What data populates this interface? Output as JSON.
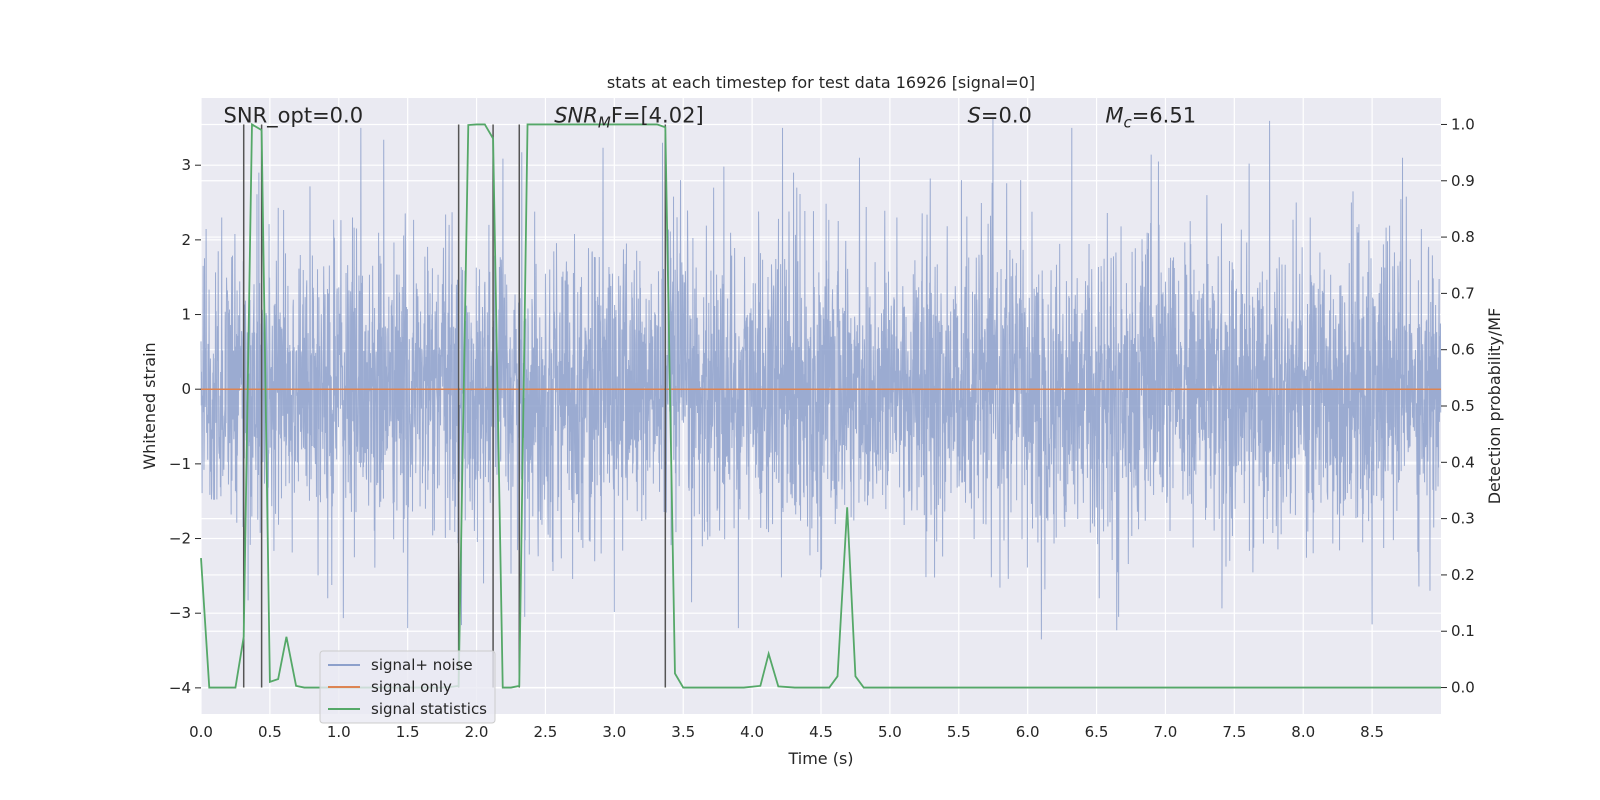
{
  "chart_data": {
    "type": "line",
    "title": "stats at each timestep for test data 16926 [signal=0]",
    "xlabel": "Time (s)",
    "ylabel": "Whitened strain",
    "y2label": "Detection probability/MF",
    "xlim": [
      0,
      9.0
    ],
    "ylim": [
      -4.35,
      3.9
    ],
    "y2lim": [
      -0.047,
      1.047
    ],
    "grid": true,
    "legend_position": "lower-left",
    "x_ticks": [
      0.0,
      0.5,
      1.0,
      1.5,
      2.0,
      2.5,
      3.0,
      3.5,
      4.0,
      4.5,
      5.0,
      5.5,
      6.0,
      6.5,
      7.0,
      7.5,
      8.0,
      8.5
    ],
    "x_tick_labels": [
      "0.0",
      "0.5",
      "1.0",
      "1.5",
      "2.0",
      "2.5",
      "3.0",
      "3.5",
      "4.0",
      "4.5",
      "5.0",
      "5.5",
      "6.0",
      "6.5",
      "7.0",
      "7.5",
      "8.0",
      "8.5"
    ],
    "y_ticks": [
      3,
      2,
      1,
      0,
      -1,
      -2,
      -3,
      -4
    ],
    "y_tick_labels": [
      "3",
      "2",
      "1",
      "0",
      "−1",
      "−2",
      "−3",
      "−4"
    ],
    "y2_ticks": [
      1.0,
      0.9,
      0.8,
      0.7,
      0.6,
      0.5,
      0.4,
      0.3,
      0.2,
      0.1,
      0.0
    ],
    "y2_tick_labels": [
      "1.0",
      "0.9",
      "0.8",
      "0.7",
      "0.6",
      "0.5",
      "0.4",
      "0.3",
      "0.2",
      "0.1",
      "0.0"
    ],
    "annotations": [
      {
        "x": 0.2,
        "y": 1.0,
        "text": "SNR_opt=0.0",
        "math": false
      },
      {
        "x": 2.6,
        "y": 1.0,
        "base": "SNR",
        "sub": "M",
        "rest": "F=[4.02]",
        "math": true
      },
      {
        "x": 5.6,
        "y": 1.0,
        "base": "S",
        "sub": "",
        "rest": "=0.0",
        "math": true
      },
      {
        "x": 6.6,
        "y": 1.0,
        "base": "M",
        "sub": "c",
        "rest": "=6.51",
        "math": true
      }
    ],
    "legend": [
      {
        "label": "signal+ noise",
        "color": "#8da0cb"
      },
      {
        "label": "signal only",
        "color": "#dd8452"
      },
      {
        "label": "signal statistics",
        "color": "#55a868"
      }
    ],
    "series": [
      {
        "name": "signal+ noise",
        "color": "#8da0cb",
        "axis": "left",
        "kind": "noise",
        "sample_rate": 512,
        "std": 0.95,
        "spikes": [
          [
            0.15,
            2.3
          ],
          [
            0.42,
            2.9
          ],
          [
            0.6,
            2.4
          ],
          [
            0.92,
            -2.8
          ],
          [
            1.1,
            2.3
          ],
          [
            1.16,
            3.5
          ],
          [
            1.5,
            -3.2
          ],
          [
            1.8,
            2.2
          ],
          [
            2.05,
            -2.6
          ],
          [
            2.35,
            -3.05
          ],
          [
            3.35,
            3.3
          ],
          [
            3.48,
            2.8
          ],
          [
            3.72,
            2.7
          ],
          [
            3.9,
            -3.2
          ],
          [
            4.22,
            3.5
          ],
          [
            4.3,
            2.9
          ],
          [
            4.78,
            3.1
          ],
          [
            5.05,
            2.3
          ],
          [
            5.52,
            2.8
          ],
          [
            5.95,
            2.8
          ],
          [
            6.1,
            -3.35
          ],
          [
            6.32,
            3.5
          ],
          [
            6.52,
            -2.8
          ],
          [
            6.66,
            -3.05
          ],
          [
            6.95,
            3.05
          ],
          [
            7.3,
            2.6
          ],
          [
            7.95,
            2.5
          ],
          [
            8.05,
            2.3
          ],
          [
            8.35,
            2.5
          ],
          [
            8.5,
            -3.15
          ],
          [
            8.72,
            3.1
          ],
          [
            8.92,
            -2.7
          ]
        ]
      },
      {
        "name": "signal only",
        "color": "#dd8452",
        "axis": "left",
        "x": [
          0.0,
          9.0
        ],
        "y": [
          0.0,
          0.0
        ]
      },
      {
        "name": "signal statistics",
        "color": "#55a868",
        "axis": "right",
        "x": [
          0.0,
          0.06,
          0.2,
          0.25,
          0.31,
          0.37,
          0.44,
          0.5,
          0.56,
          0.62,
          0.69,
          0.75,
          0.81,
          0.87,
          1.0,
          1.12,
          1.25,
          1.37,
          1.5,
          1.62,
          1.75,
          1.81,
          1.87,
          1.94,
          2.0,
          2.06,
          2.12,
          2.19,
          2.25,
          2.31,
          2.37,
          2.44,
          2.5,
          2.62,
          2.75,
          2.87,
          3.0,
          3.12,
          3.25,
          3.31,
          3.37,
          3.44,
          3.5,
          3.56,
          3.69,
          3.81,
          3.94,
          4.06,
          4.12,
          4.19,
          4.31,
          4.44,
          4.56,
          4.62,
          4.69,
          4.75,
          4.81,
          4.94,
          5.06,
          5.19,
          5.31,
          5.44,
          5.56,
          5.69,
          5.81,
          5.94,
          6.06,
          6.19,
          6.31,
          6.44,
          6.56,
          6.69,
          6.81,
          6.94,
          7.06,
          7.19,
          7.31,
          7.44,
          7.56,
          7.69,
          7.81,
          7.94,
          8.06,
          8.19,
          8.31,
          8.44,
          8.56,
          8.69,
          8.81,
          9.0
        ],
        "y": [
          0.23,
          0.0,
          0.0,
          0.0,
          0.09,
          1.0,
          0.99,
          0.01,
          0.015,
          0.09,
          0.003,
          0.0,
          0.0,
          0.0,
          0.0,
          0.0,
          0.0,
          0.0,
          0.0,
          0.0,
          0.0,
          0.001,
          0.003,
          0.999,
          1.0,
          1.0,
          0.975,
          0.0,
          0.0,
          0.003,
          1.0,
          1.0,
          1.0,
          1.0,
          1.0,
          1.0,
          1.0,
          1.0,
          1.0,
          1.0,
          0.995,
          0.025,
          0.0,
          0.0,
          0.0,
          0.0,
          0.0,
          0.003,
          0.06,
          0.002,
          0.0,
          0.0,
          0.0,
          0.02,
          0.32,
          0.02,
          0.0,
          0.0,
          0.0,
          0.0,
          0.0,
          0.0,
          0.0,
          0.0,
          0.0,
          0.0,
          0.0,
          0.0,
          0.0,
          0.0,
          0.0,
          0.0,
          0.0,
          0.0,
          0.0,
          0.0,
          0.0,
          0.0,
          0.0,
          0.0,
          0.0,
          0.0,
          0.0,
          0.0,
          0.0,
          0.0,
          0.0,
          0.0,
          0.0,
          0.0
        ]
      }
    ],
    "vertical_markers": {
      "color": "#555555",
      "x": [
        0.31,
        0.44,
        1.87,
        2.12,
        2.31,
        3.37
      ],
      "y_top": 1.0,
      "y_bottom": 0.0,
      "axis": "right"
    }
  }
}
